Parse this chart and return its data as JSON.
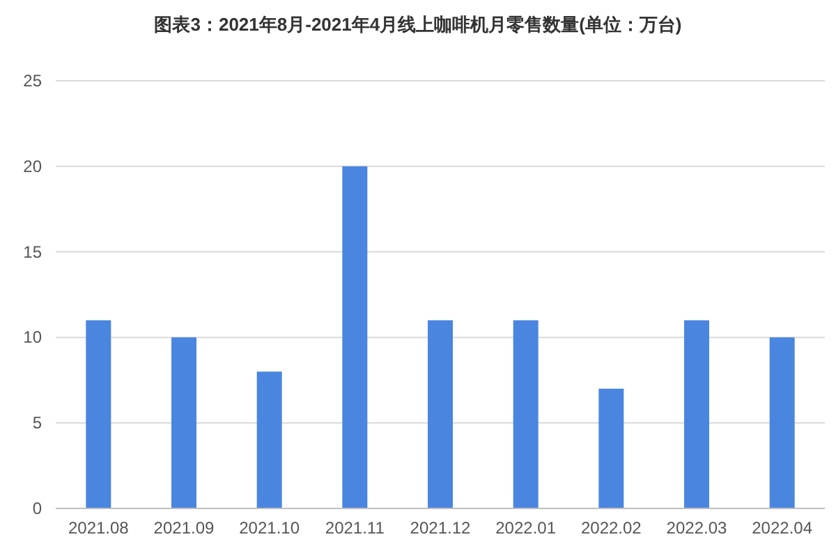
{
  "chart_data": {
    "type": "bar",
    "title": "图表3：2021年8月-2021年4月线上咖啡机月零售数量(单位：万台)",
    "categories": [
      "2021.08",
      "2021.09",
      "2021.10",
      "2021.11",
      "2021.12",
      "2022.01",
      "2022.02",
      "2022.03",
      "2022.04"
    ],
    "values": [
      11,
      10,
      8,
      20,
      11,
      11,
      7,
      11,
      10
    ],
    "color": "#4a86e0",
    "ylim": [
      0,
      25
    ],
    "yticks": [
      0,
      5,
      10,
      15,
      20,
      25
    ],
    "grid": "y"
  }
}
